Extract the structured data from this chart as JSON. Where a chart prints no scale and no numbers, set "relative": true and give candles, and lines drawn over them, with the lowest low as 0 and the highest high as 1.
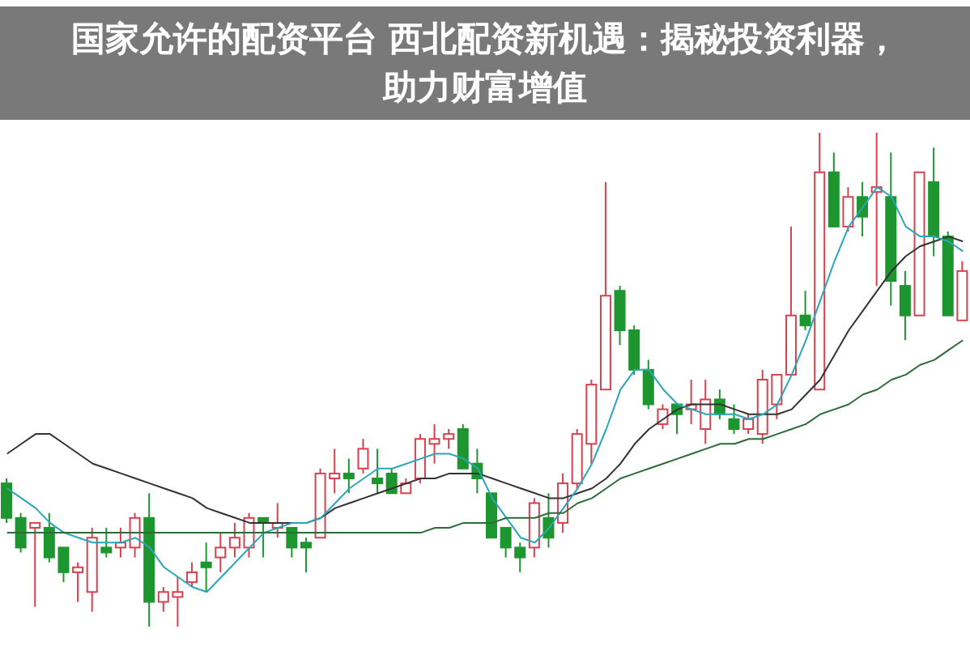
{
  "chart_data": {
    "type": "candlestick",
    "title": "国家允许的配资平台 西北配资新机遇：揭秘投资利器，助力财富增值",
    "relative": true,
    "categories": [
      null,
      null,
      null,
      null,
      null,
      null,
      null,
      null,
      null,
      null,
      null,
      null,
      null,
      null,
      null,
      null,
      null,
      null,
      null,
      null,
      null,
      null,
      null,
      null,
      null,
      null,
      null,
      null,
      null,
      null,
      null,
      null,
      null,
      null,
      null,
      null,
      null,
      null,
      null,
      null,
      null,
      null,
      null,
      null,
      null,
      null,
      null,
      null,
      null,
      null,
      null,
      null,
      null,
      null,
      null,
      null,
      null,
      null,
      null,
      null,
      null,
      null,
      null,
      null,
      null,
      null,
      null,
      null
    ],
    "ohlc": [
      [
        0.29,
        0.3,
        0.21,
        0.22
      ],
      [
        0.22,
        0.23,
        0.15,
        0.16
      ],
      [
        0.2,
        0.21,
        0.04,
        0.21
      ],
      [
        0.2,
        0.23,
        0.13,
        0.14
      ],
      [
        0.16,
        0.16,
        0.09,
        0.11
      ],
      [
        0.11,
        0.13,
        0.05,
        0.12
      ],
      [
        0.07,
        0.2,
        0.03,
        0.18
      ],
      [
        0.16,
        0.2,
        0.14,
        0.15
      ],
      [
        0.16,
        0.2,
        0.14,
        0.17
      ],
      [
        0.16,
        0.23,
        0.14,
        0.22
      ],
      [
        0.22,
        0.27,
        0,
        0.05
      ],
      [
        0.05,
        0.08,
        0.03,
        0.07
      ],
      [
        0.06,
        0.1,
        0,
        0.07
      ],
      [
        0.09,
        0.13,
        0.08,
        0.11
      ],
      [
        0.13,
        0.17,
        0.07,
        0.12
      ],
      [
        0.14,
        0.19,
        0.11,
        0.16
      ],
      [
        0.16,
        0.21,
        0.14,
        0.18
      ],
      [
        0.16,
        0.23,
        0.14,
        0.22
      ],
      [
        0.22,
        0.22,
        0.14,
        0.21
      ],
      [
        0.2,
        0.25,
        0.18,
        0.21
      ],
      [
        0.2,
        0.2,
        0.14,
        0.16
      ],
      [
        0.17,
        0.18,
        0.11,
        0.16
      ],
      [
        0.18,
        0.32,
        0.18,
        0.31
      ],
      [
        0.3,
        0.36,
        0.27,
        0.31
      ],
      [
        0.31,
        0.34,
        0.27,
        0.3
      ],
      [
        0.32,
        0.38,
        0.31,
        0.36
      ],
      [
        0.3,
        0.36,
        0.27,
        0.29
      ],
      [
        0.31,
        0.32,
        0.27,
        0.27
      ],
      [
        0.27,
        0.3,
        0.27,
        0.29
      ],
      [
        0.3,
        0.39,
        0.29,
        0.38
      ],
      [
        0.37,
        0.41,
        0.33,
        0.38
      ],
      [
        0.38,
        0.4,
        0.36,
        0.39
      ],
      [
        0.4,
        0.41,
        0.32,
        0.32
      ],
      [
        0.33,
        0.36,
        0.27,
        0.3
      ],
      [
        0.27,
        0.27,
        0.18,
        0.18
      ],
      [
        0.2,
        0.2,
        0.14,
        0.16
      ],
      [
        0.16,
        0.17,
        0.11,
        0.14
      ],
      [
        0.16,
        0.26,
        0.14,
        0.25
      ],
      [
        0.22,
        0.27,
        0.16,
        0.18
      ],
      [
        0.21,
        0.31,
        0.19,
        0.29
      ],
      [
        0.29,
        0.4,
        0.28,
        0.39
      ],
      [
        0.37,
        0.5,
        0.33,
        0.49
      ],
      [
        0.48,
        0.9,
        0.48,
        0.67
      ],
      [
        0.68,
        0.69,
        0.57,
        0.6
      ],
      [
        0.6,
        0.61,
        0.51,
        0.52
      ],
      [
        0.52,
        0.54,
        0.44,
        0.45
      ],
      [
        0.41,
        0.45,
        0.4,
        0.44
      ],
      [
        0.45,
        0.45,
        0.39,
        0.43
      ],
      [
        0.44,
        0.5,
        0.41,
        0.45
      ],
      [
        0.4,
        0.5,
        0.37,
        0.46
      ],
      [
        0.46,
        0.48,
        0.42,
        0.43
      ],
      [
        0.42,
        0.45,
        0.39,
        0.4
      ],
      [
        0.4,
        0.43,
        0.39,
        0.42
      ],
      [
        0.39,
        0.52,
        0.37,
        0.5
      ],
      [
        0.45,
        0.51,
        0.42,
        0.51
      ],
      [
        0.51,
        0.81,
        0.51,
        0.63
      ],
      [
        0.63,
        0.68,
        0.6,
        0.61
      ],
      [
        0.48,
        1,
        0.48,
        0.92
      ],
      [
        0.92,
        0.96,
        0.81,
        0.81
      ],
      [
        0.81,
        0.89,
        0.8,
        0.87
      ],
      [
        0.87,
        0.9,
        0.79,
        0.83
      ],
      [
        0.88,
        1,
        0.69,
        0.89
      ],
      [
        0.87,
        0.96,
        0.65,
        0.7
      ],
      [
        0.69,
        0.72,
        0.58,
        0.63
      ],
      [
        0.63,
        0.92,
        0.63,
        0.92
      ],
      [
        0.9,
        0.97,
        0.75,
        0.79
      ],
      [
        0.79,
        0.8,
        0.63,
        0.63
      ],
      [
        0.62,
        0.74,
        0.62,
        0.72
      ]
    ],
    "colors": [
      "#1e9630",
      "#1e9630",
      "#d9414f",
      "#1e9630",
      "#1e9630",
      "#d9414f",
      "#d9414f",
      "#1e9630",
      "#d9414f",
      "#d9414f",
      "#1e9630",
      "#d9414f",
      "#d9414f",
      "#d9414f",
      "#1e9630",
      "#d9414f",
      "#d9414f",
      "#d9414f",
      "#1e9630",
      "#d9414f",
      "#1e9630",
      "#1e9630",
      "#d9414f",
      "#d9414f",
      "#1e9630",
      "#d9414f",
      "#1e9630",
      "#1e9630",
      "#d9414f",
      "#d9414f",
      "#d9414f",
      "#d9414f",
      "#1e9630",
      "#1e9630",
      "#1e9630",
      "#1e9630",
      "#1e9630",
      "#d9414f",
      "#1e9630",
      "#d9414f",
      "#d9414f",
      "#d9414f",
      "#d9414f",
      "#1e9630",
      "#1e9630",
      "#1e9630",
      "#d9414f",
      "#1e9630",
      "#d9414f",
      "#d9414f",
      "#1e9630",
      "#1e9630",
      "#d9414f",
      "#d9414f",
      "#d9414f",
      "#d9414f",
      "#1e9630",
      "#d9414f",
      "#1e9630",
      "#d9414f",
      "#1e9630",
      "#d9414f",
      "#1e9630",
      "#1e9630",
      "#d9414f",
      "#1e9630",
      "#1e9630",
      "#d9414f"
    ],
    "series": [
      {
        "type": "line",
        "color": "#333333",
        "values": [
          0.35,
          0.37,
          0.39,
          0.39,
          0.37,
          0.35,
          0.33,
          0.32,
          0.31,
          0.3,
          0.29,
          0.28,
          0.27,
          0.26,
          0.24,
          0.23,
          0.22,
          0.21,
          0.21,
          0.21,
          0.21,
          0.21,
          0.22,
          0.24,
          0.25,
          0.26,
          0.27,
          0.28,
          0.29,
          0.3,
          0.3,
          0.31,
          0.31,
          0.31,
          0.3,
          0.29,
          0.28,
          0.27,
          0.26,
          0.26,
          0.27,
          0.28,
          0.3,
          0.33,
          0.37,
          0.4,
          0.42,
          0.44,
          0.45,
          0.45,
          0.45,
          0.44,
          0.43,
          0.43,
          0.43,
          0.44,
          0.47,
          0.5,
          0.55,
          0.6,
          0.64,
          0.68,
          0.72,
          0.75,
          0.77,
          0.78,
          0.79,
          0.78
        ]
      },
      {
        "type": "line",
        "color": "#2aa6b8",
        "values": [
          0.28,
          0.26,
          0.24,
          0.21,
          0.19,
          0.18,
          0.17,
          0.17,
          0.17,
          0.18,
          0.16,
          0.12,
          0.1,
          0.08,
          0.07,
          0.1,
          0.13,
          0.16,
          0.19,
          0.2,
          0.21,
          0.21,
          0.22,
          0.25,
          0.28,
          0.3,
          0.32,
          0.32,
          0.33,
          0.34,
          0.35,
          0.35,
          0.34,
          0.32,
          0.26,
          0.22,
          0.18,
          0.17,
          0.2,
          0.24,
          0.28,
          0.33,
          0.4,
          0.48,
          0.52,
          0.52,
          0.48,
          0.45,
          0.44,
          0.43,
          0.43,
          0.43,
          0.42,
          0.43,
          0.45,
          0.51,
          0.58,
          0.66,
          0.74,
          0.81,
          0.85,
          0.89,
          0.87,
          0.81,
          0.79,
          0.79,
          0.78,
          0.76
        ]
      },
      {
        "type": "line",
        "color": "#2e6b3a",
        "values": [
          0.19,
          0.19,
          0.19,
          0.19,
          0.19,
          0.19,
          0.19,
          0.19,
          0.19,
          0.19,
          0.19,
          0.19,
          0.19,
          0.19,
          0.19,
          0.19,
          0.19,
          0.19,
          0.19,
          0.19,
          0.19,
          0.19,
          0.19,
          0.19,
          0.19,
          0.19,
          0.19,
          0.19,
          0.19,
          0.19,
          0.2,
          0.2,
          0.21,
          0.21,
          0.21,
          0.22,
          0.22,
          0.22,
          0.23,
          0.23,
          0.25,
          0.26,
          0.28,
          0.3,
          0.31,
          0.32,
          0.33,
          0.34,
          0.35,
          0.36,
          0.37,
          0.37,
          0.38,
          0.38,
          0.39,
          0.4,
          0.41,
          0.43,
          0.44,
          0.45,
          0.47,
          0.48,
          0.5,
          0.51,
          0.53,
          0.54,
          0.56,
          0.58
        ]
      }
    ]
  }
}
